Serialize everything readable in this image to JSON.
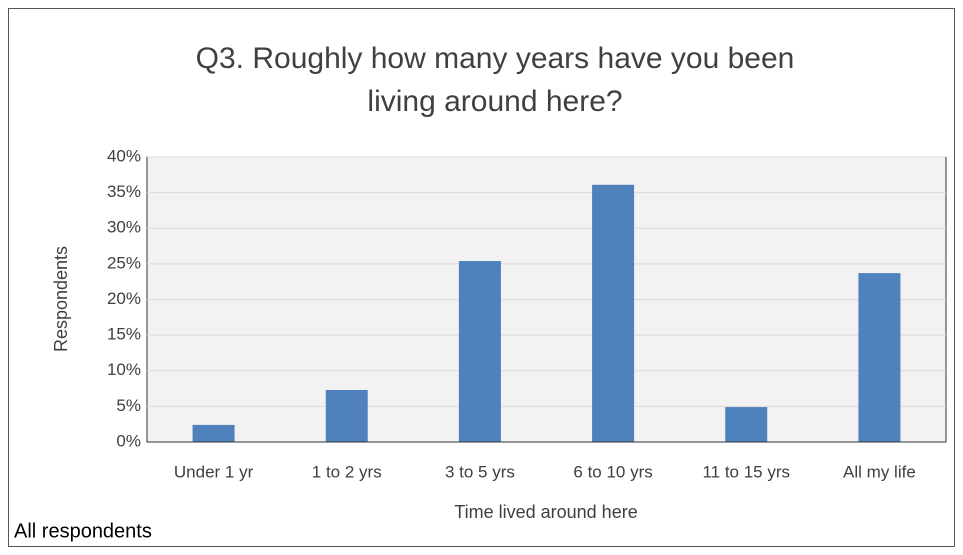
{
  "chart_data": {
    "type": "bar",
    "title": [
      "Q3. Roughly how many years have you been",
      "living around here?"
    ],
    "x_label": "Time lived around here",
    "y_label": "Respondents",
    "note": "All respondents",
    "categories": [
      "Under 1 yr",
      "1 to 2 yrs",
      "3 to 5 yrs",
      "6 to 10 yrs",
      "11 to 15 yrs",
      "All my life"
    ],
    "values": [
      2.4,
      7.3,
      25.4,
      36.1,
      4.9,
      23.7
    ],
    "color": "#4f81bd",
    "ylim": [
      0,
      40
    ],
    "yticks": [
      {
        "value": 0,
        "label": "0%"
      },
      {
        "value": 5,
        "label": "5%"
      },
      {
        "value": 10,
        "label": "10%"
      },
      {
        "value": 15,
        "label": "15%"
      },
      {
        "value": 20,
        "label": "20%"
      },
      {
        "value": 25,
        "label": "25%"
      },
      {
        "value": 30,
        "label": "30%"
      },
      {
        "value": 35,
        "label": "35%"
      },
      {
        "value": 40,
        "label": "40%"
      }
    ],
    "grid": true
  }
}
